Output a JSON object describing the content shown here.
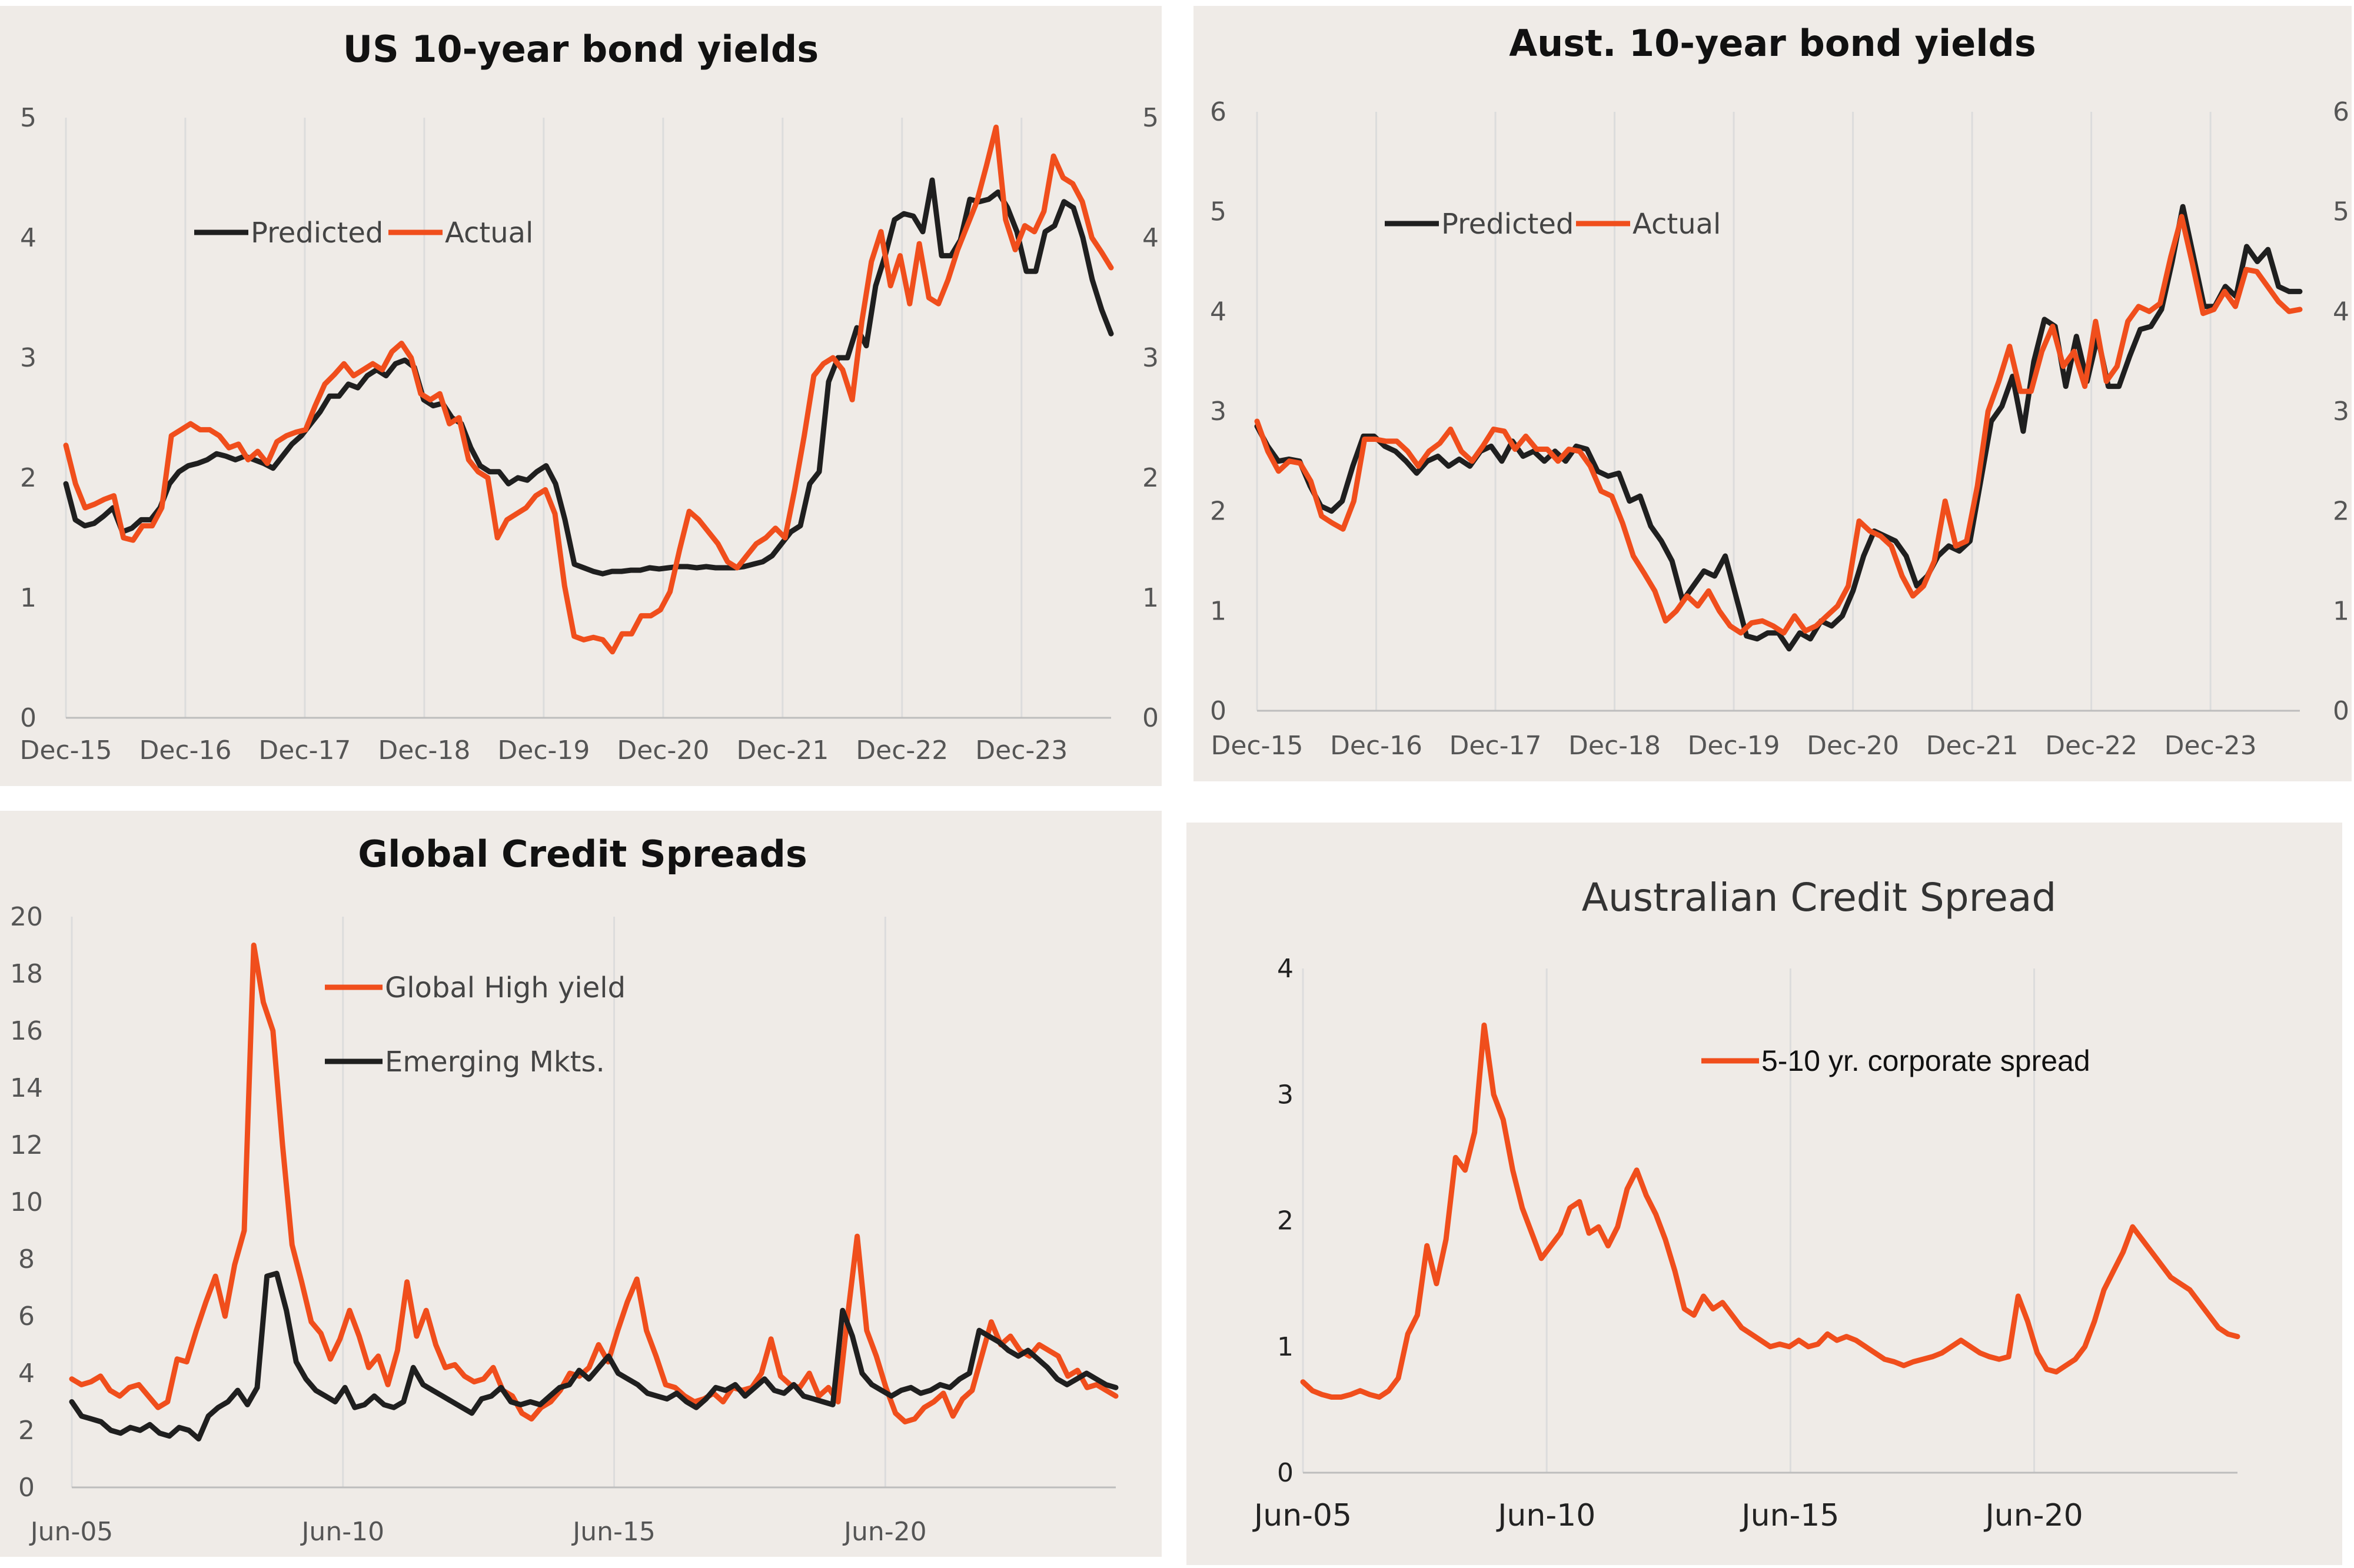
{
  "colors": {
    "predicted": "#1f1f1f",
    "actual": "#f04e1c",
    "panel_bg": "#efebe7"
  },
  "chart_data": [
    {
      "type": "line",
      "title": "US 10-year bond yields",
      "ylim": [
        0,
        5
      ],
      "yticks": [
        "0",
        "1",
        "2",
        "3",
        "4",
        "5"
      ],
      "xticks": [
        "Dec-15",
        "Dec-16",
        "Dec-17",
        "Dec-18",
        "Dec-19",
        "Dec-20",
        "Dec-21",
        "Dec-22",
        "Dec-23"
      ],
      "x_start": 2015.92,
      "x_end": 2024.67,
      "legend": "top-left",
      "series": [
        {
          "name": "Predicted",
          "color": "#1f1f1f",
          "values": [
            1.95,
            1.65,
            1.6,
            1.62,
            1.68,
            1.75,
            1.55,
            1.58,
            1.65,
            1.65,
            1.75,
            1.95,
            2.05,
            2.1,
            2.12,
            2.15,
            2.2,
            2.18,
            2.15,
            2.18,
            2.15,
            2.12,
            2.08,
            2.18,
            2.28,
            2.35,
            2.45,
            2.55,
            2.68,
            2.68,
            2.78,
            2.75,
            2.85,
            2.9,
            2.85,
            2.95,
            2.98,
            2.92,
            2.65,
            2.6,
            2.62,
            2.5,
            2.45,
            2.25,
            2.1,
            2.05,
            2.05,
            1.95,
            2.0,
            1.98,
            2.05,
            2.1,
            1.95,
            1.65,
            1.28,
            1.25,
            1.22,
            1.2,
            1.22,
            1.22,
            1.23,
            1.23,
            1.25,
            1.24,
            1.25,
            1.26,
            1.26,
            1.25,
            1.26,
            1.25,
            1.25,
            1.25,
            1.26,
            1.28,
            1.3,
            1.35,
            1.45,
            1.55,
            1.6,
            1.95,
            2.05,
            2.8,
            3.0,
            3.0,
            3.25,
            3.1,
            3.6,
            3.85,
            4.15,
            4.2,
            4.18,
            4.05,
            4.48,
            3.85,
            3.85,
            3.98,
            4.32,
            4.3,
            4.32,
            4.38,
            4.25,
            4.05,
            3.72,
            3.72,
            4.05,
            4.1,
            4.3,
            4.25,
            4.0,
            3.65,
            3.4,
            3.2
          ]
        },
        {
          "name": "Actual",
          "color": "#f04e1c",
          "values": [
            2.27,
            1.95,
            1.75,
            1.78,
            1.82,
            1.85,
            1.5,
            1.48,
            1.6,
            1.6,
            1.75,
            2.35,
            2.4,
            2.45,
            2.4,
            2.4,
            2.35,
            2.25,
            2.28,
            2.15,
            2.22,
            2.12,
            2.3,
            2.35,
            2.38,
            2.4,
            2.6,
            2.78,
            2.86,
            2.95,
            2.85,
            2.9,
            2.95,
            2.9,
            3.05,
            3.12,
            3.0,
            2.7,
            2.65,
            2.7,
            2.45,
            2.5,
            2.15,
            2.05,
            2.0,
            1.5,
            1.65,
            1.7,
            1.75,
            1.85,
            1.9,
            1.7,
            1.1,
            0.68,
            0.65,
            0.67,
            0.65,
            0.55,
            0.7,
            0.7,
            0.85,
            0.85,
            0.9,
            1.05,
            1.4,
            1.72,
            1.65,
            1.55,
            1.45,
            1.3,
            1.25,
            1.35,
            1.45,
            1.5,
            1.58,
            1.5,
            1.9,
            2.35,
            2.85,
            2.95,
            3.0,
            2.9,
            2.65,
            3.3,
            3.8,
            4.05,
            3.6,
            3.85,
            3.45,
            3.95,
            3.5,
            3.45,
            3.65,
            3.9,
            4.1,
            4.3,
            4.6,
            4.92,
            4.15,
            3.9,
            4.1,
            4.05,
            4.22,
            4.68,
            4.5,
            4.45,
            4.3,
            4.0,
            3.88,
            3.75
          ]
        }
      ]
    },
    {
      "type": "line",
      "title": "Aust. 10-year bond yields",
      "ylim": [
        0,
        6
      ],
      "yticks": [
        "0",
        "1",
        "2",
        "3",
        "4",
        "5",
        "6"
      ],
      "xticks": [
        "Dec-15",
        "Dec-16",
        "Dec-17",
        "Dec-18",
        "Dec-19",
        "Dec-20",
        "Dec-21",
        "Dec-22",
        "Dec-23"
      ],
      "x_start": 2015.92,
      "x_end": 2024.67,
      "legend": "top-left",
      "series": [
        {
          "name": "Predicted",
          "color": "#1f1f1f",
          "values": [
            2.85,
            2.65,
            2.5,
            2.52,
            2.5,
            2.25,
            2.05,
            2.0,
            2.1,
            2.45,
            2.75,
            2.75,
            2.65,
            2.6,
            2.5,
            2.38,
            2.5,
            2.55,
            2.45,
            2.52,
            2.45,
            2.6,
            2.65,
            2.5,
            2.7,
            2.55,
            2.6,
            2.5,
            2.6,
            2.5,
            2.65,
            2.62,
            2.4,
            2.35,
            2.38,
            2.1,
            2.15,
            1.85,
            1.7,
            1.5,
            1.1,
            1.25,
            1.4,
            1.35,
            1.55,
            1.15,
            0.75,
            0.72,
            0.78,
            0.78,
            0.62,
            0.78,
            0.72,
            0.9,
            0.85,
            0.95,
            1.2,
            1.55,
            1.8,
            1.75,
            1.7,
            1.55,
            1.25,
            1.35,
            1.55,
            1.65,
            1.6,
            1.7,
            2.3,
            2.9,
            3.05,
            3.35,
            2.8,
            3.5,
            3.92,
            3.85,
            3.25,
            3.75,
            3.3,
            3.75,
            3.25,
            3.25,
            3.55,
            3.82,
            3.85,
            4.02,
            4.5,
            5.05,
            4.55,
            4.05,
            4.05,
            4.25,
            4.15,
            4.65,
            4.5,
            4.62,
            4.25,
            4.2,
            4.2
          ]
        },
        {
          "name": "Actual",
          "color": "#f04e1c",
          "values": [
            2.9,
            2.6,
            2.4,
            2.5,
            2.48,
            2.3,
            1.95,
            1.88,
            1.82,
            2.1,
            2.72,
            2.72,
            2.7,
            2.7,
            2.6,
            2.45,
            2.6,
            2.68,
            2.82,
            2.6,
            2.5,
            2.65,
            2.82,
            2.8,
            2.62,
            2.75,
            2.62,
            2.62,
            2.5,
            2.62,
            2.6,
            2.45,
            2.2,
            2.15,
            1.88,
            1.55,
            1.38,
            1.2,
            0.9,
            1.0,
            1.15,
            1.05,
            1.2,
            1.0,
            0.85,
            0.78,
            0.88,
            0.9,
            0.85,
            0.78,
            0.95,
            0.8,
            0.85,
            0.95,
            1.05,
            1.25,
            1.9,
            1.8,
            1.75,
            1.65,
            1.35,
            1.15,
            1.25,
            1.5,
            2.1,
            1.65,
            1.7,
            2.25,
            3.0,
            3.3,
            3.65,
            3.2,
            3.2,
            3.6,
            3.85,
            3.45,
            3.6,
            3.25,
            3.9,
            3.3,
            3.45,
            3.9,
            4.05,
            4.0,
            4.08,
            4.55,
            4.95,
            4.48,
            3.98,
            4.02,
            4.2,
            4.05,
            4.42,
            4.4,
            4.25,
            4.1,
            4.0,
            4.02
          ]
        }
      ]
    },
    {
      "type": "line",
      "title": "Global Credit Spreads",
      "ylim": [
        0,
        20
      ],
      "yticks": [
        "0",
        "2",
        "4",
        "6",
        "8",
        "10",
        "12",
        "14",
        "16",
        "18",
        "20"
      ],
      "xticks": [
        "Jun-05",
        "Jun-10",
        "Jun-15",
        "Jun-20"
      ],
      "x_start": 2005.5,
      "x_end": 2024.75,
      "legend": "top-center",
      "series": [
        {
          "name": "Global High yield",
          "color": "#f04e1c",
          "values": [
            3.8,
            3.6,
            3.7,
            3.9,
            3.4,
            3.2,
            3.5,
            3.6,
            3.2,
            2.8,
            3.0,
            4.5,
            4.4,
            5.5,
            6.5,
            7.4,
            6.0,
            7.8,
            9.0,
            19.0,
            17.0,
            16.0,
            12.0,
            8.5,
            7.2,
            5.8,
            5.4,
            4.5,
            5.2,
            6.2,
            5.3,
            4.2,
            4.6,
            3.6,
            4.8,
            7.2,
            5.3,
            6.2,
            5.0,
            4.2,
            4.3,
            3.9,
            3.7,
            3.8,
            4.2,
            3.4,
            3.2,
            2.6,
            2.4,
            2.8,
            3.0,
            3.4,
            4.0,
            3.9,
            4.2,
            5.0,
            4.4,
            5.5,
            6.5,
            7.3,
            5.5,
            4.6,
            3.6,
            3.5,
            3.2,
            3.0,
            3.1,
            3.3,
            3.0,
            3.5,
            3.4,
            3.5,
            4.0,
            5.2,
            3.9,
            3.6,
            3.5,
            4.0,
            3.2,
            3.5,
            3.0,
            6.0,
            8.8,
            5.5,
            4.6,
            3.5,
            2.6,
            2.3,
            2.4,
            2.8,
            3.0,
            3.3,
            2.5,
            3.1,
            3.4,
            4.6,
            5.8,
            5.0,
            5.3,
            4.8,
            4.6,
            5.0,
            4.8,
            4.6,
            3.9,
            4.1,
            3.5,
            3.6,
            3.4,
            3.2
          ]
        },
        {
          "name": "Emerging Mkts.",
          "color": "#1f1f1f",
          "values": [
            3.0,
            2.5,
            2.4,
            2.3,
            2.0,
            1.9,
            2.1,
            2.0,
            2.2,
            1.9,
            1.8,
            2.1,
            2.0,
            1.7,
            2.5,
            2.8,
            3.0,
            3.4,
            2.9,
            3.5,
            7.4,
            7.5,
            6.2,
            4.4,
            3.8,
            3.4,
            3.2,
            3.0,
            3.5,
            2.8,
            2.9,
            3.2,
            2.9,
            2.8,
            3.0,
            4.2,
            3.6,
            3.4,
            3.2,
            3.0,
            2.8,
            2.6,
            3.1,
            3.2,
            3.5,
            3.0,
            2.9,
            3.0,
            2.9,
            3.2,
            3.5,
            3.6,
            4.1,
            3.8,
            4.2,
            4.6,
            4.0,
            3.8,
            3.6,
            3.3,
            3.2,
            3.1,
            3.3,
            3.0,
            2.8,
            3.1,
            3.5,
            3.4,
            3.6,
            3.2,
            3.5,
            3.8,
            3.4,
            3.3,
            3.6,
            3.2,
            3.1,
            3.0,
            2.9,
            6.2,
            5.3,
            4.0,
            3.6,
            3.4,
            3.2,
            3.4,
            3.5,
            3.3,
            3.4,
            3.6,
            3.5,
            3.8,
            4.0,
            5.5,
            5.3,
            5.1,
            4.8,
            4.6,
            4.8,
            4.5,
            4.2,
            3.8,
            3.6,
            3.8,
            4.0,
            3.8,
            3.6,
            3.5
          ]
        }
      ]
    },
    {
      "type": "line",
      "title": "Australian Credit Spread",
      "ylim": [
        0,
        4
      ],
      "yticks": [
        "0",
        "1",
        "2",
        "3",
        "4"
      ],
      "xticks": [
        "Jun-05",
        "Jun-10",
        "Jun-15",
        "Jun-20"
      ],
      "x_start": 2005.5,
      "x_end": 2024.67,
      "legend": "top-right",
      "series": [
        {
          "name": "5-10 yr. corporate spread",
          "color": "#f04e1c",
          "values": [
            0.72,
            0.65,
            0.62,
            0.6,
            0.6,
            0.62,
            0.65,
            0.62,
            0.6,
            0.65,
            0.75,
            1.1,
            1.25,
            1.8,
            1.5,
            1.85,
            2.5,
            2.4,
            2.7,
            3.55,
            3.0,
            2.8,
            2.4,
            2.1,
            1.9,
            1.7,
            1.8,
            1.9,
            2.1,
            2.15,
            1.9,
            1.95,
            1.8,
            1.95,
            2.25,
            2.4,
            2.2,
            2.05,
            1.85,
            1.6,
            1.3,
            1.25,
            1.4,
            1.3,
            1.35,
            1.25,
            1.15,
            1.1,
            1.05,
            1.0,
            1.02,
            1.0,
            1.05,
            1.0,
            1.02,
            1.1,
            1.05,
            1.08,
            1.05,
            1.0,
            0.95,
            0.9,
            0.88,
            0.85,
            0.88,
            0.9,
            0.92,
            0.95,
            1.0,
            1.05,
            1.0,
            0.95,
            0.92,
            0.9,
            0.92,
            1.4,
            1.2,
            0.95,
            0.82,
            0.8,
            0.85,
            0.9,
            1.0,
            1.2,
            1.45,
            1.6,
            1.75,
            1.95,
            1.85,
            1.75,
            1.65,
            1.55,
            1.5,
            1.45,
            1.35,
            1.25,
            1.15,
            1.1,
            1.08
          ]
        }
      ]
    }
  ]
}
